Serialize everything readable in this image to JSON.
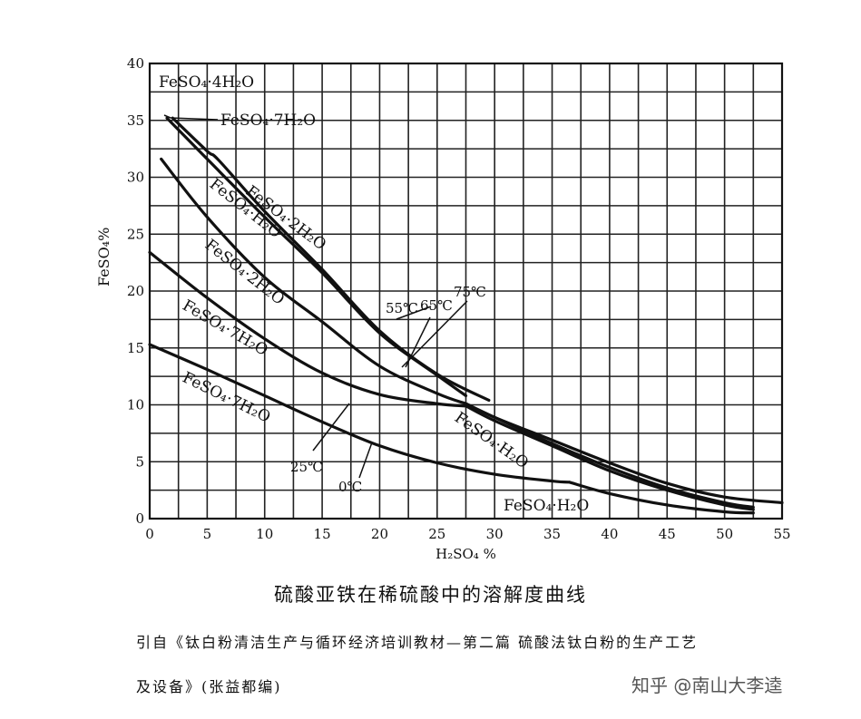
{
  "chart_data": {
    "type": "line",
    "title": "",
    "xlabel": "H₂SO₄ %",
    "ylabel": "FeSO₄%",
    "xlim": [
      0,
      55
    ],
    "ylim": [
      0,
      40
    ],
    "x_ticks": [
      "0",
      "5",
      "10",
      "15",
      "20",
      "25",
      "30",
      "35",
      "40",
      "45",
      "50",
      "55"
    ],
    "y_ticks": [
      "0",
      "5",
      "10",
      "15",
      "20",
      "25",
      "30",
      "35",
      "40"
    ],
    "grid": true,
    "series": [
      {
        "name": "0℃",
        "x": [
          0,
          5,
          10,
          15,
          20,
          25,
          30,
          35,
          36.5
        ],
        "y": [
          15.3,
          13.1,
          10.8,
          8.5,
          6.4,
          4.9,
          3.9,
          3.3,
          3.2
        ]
      },
      {
        "name": "25℃",
        "x": [
          0,
          5,
          10,
          15,
          20,
          25,
          27.5
        ],
        "y": [
          23.4,
          19.4,
          15.8,
          12.8,
          10.9,
          10.1,
          9.9
        ]
      },
      {
        "name": "55℃",
        "x": [
          1,
          5,
          10,
          15,
          20,
          25,
          27.5
        ],
        "y": [
          31.6,
          26.5,
          21.2,
          17.3,
          13.4,
          11.0,
          10.1
        ]
      },
      {
        "name": "65℃",
        "x": [
          1.5,
          5,
          10,
          15,
          20,
          25,
          27.5
        ],
        "y": [
          35.2,
          31.6,
          26.5,
          21.6,
          16.3,
          12.6,
          10.8
        ]
      },
      {
        "name": "75℃",
        "x": [
          2,
          5,
          6,
          10,
          15,
          20,
          25,
          29.5
        ],
        "y": [
          35.2,
          32.3,
          31.5,
          27.0,
          21.9,
          16.5,
          12.7,
          10.4
        ]
      },
      {
        "name": "FeSO₄·H₂O (0℃)",
        "x": [
          36.5,
          40,
          45,
          50,
          52.5
        ],
        "y": [
          3.2,
          2.2,
          1.2,
          0.6,
          0.5
        ]
      },
      {
        "name": "FeSO₄·H₂O (25℃)",
        "x": [
          27.5,
          30,
          35,
          40,
          45,
          50,
          52.5
        ],
        "y": [
          9.9,
          8.6,
          6.4,
          4.2,
          2.5,
          1.2,
          0.8
        ]
      },
      {
        "name": "FeSO₄·H₂O (55℃)",
        "x": [
          27.5,
          30,
          35,
          40,
          45,
          50,
          52.5
        ],
        "y": [
          10.1,
          8.9,
          6.6,
          4.5,
          2.7,
          1.4,
          1.0
        ]
      },
      {
        "name": "FeSO₄·H₂O (75℃)",
        "x": [
          27.5,
          30,
          35,
          40,
          45,
          50,
          55
        ],
        "y": [
          10.1,
          8.9,
          6.9,
          4.9,
          3.1,
          1.9,
          1.4
        ]
      }
    ],
    "annotations": [
      {
        "text": "FeSO₄·4H₂O"
      },
      {
        "text": "FeSO₄·7H₂O"
      },
      {
        "text": "FeSO₄·2H₂O"
      },
      {
        "text": "FeSO₄·H₂O"
      },
      {
        "text": "FeSO₄·2H₂O"
      },
      {
        "text": "FeSO₄·7H₂O"
      },
      {
        "text": "FeSO₄·7H₂O"
      },
      {
        "text": "FeSO₄·H₂O"
      },
      {
        "text": "FeSO₄·H₂O"
      },
      {
        "text": "55℃"
      },
      {
        "text": "65℃"
      },
      {
        "text": "75℃"
      },
      {
        "text": "25℃"
      },
      {
        "text": "0℃"
      }
    ]
  },
  "caption": "硫酸亚铁在稀硫酸中的溶解度曲线",
  "source_line1": "引自《钛白粉清洁生产与循环经济培训教材—第二篇 硫酸法钛白粉的生产工艺",
  "source_line2": "及设备》(张益都编)",
  "watermark": "知乎 @南山大李逵"
}
